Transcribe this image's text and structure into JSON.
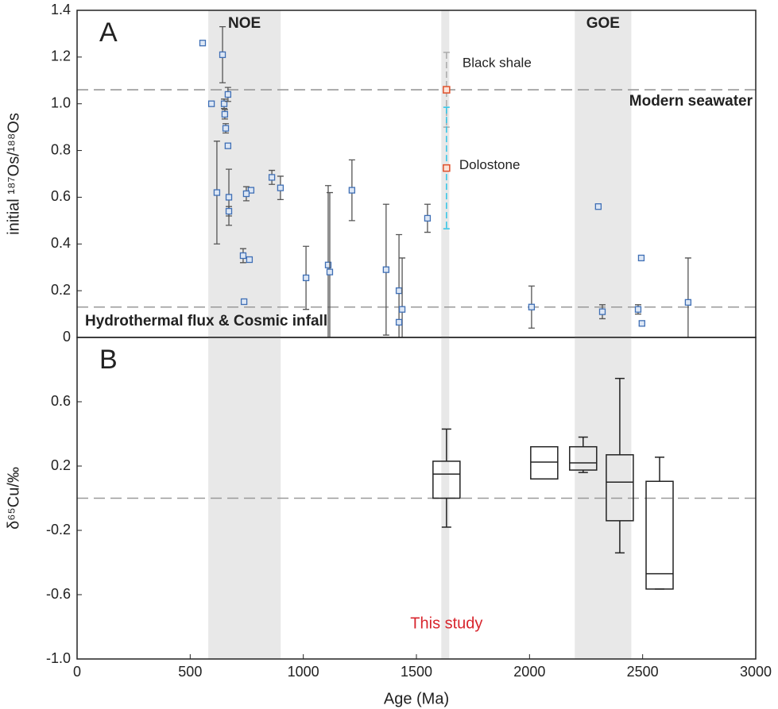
{
  "chart_data": [
    {
      "type": "scatter",
      "panel_label": "A",
      "ylabel": "initial ¹⁸⁷Os/¹⁸⁸Os",
      "xlim": [
        0,
        3000
      ],
      "ylim": [
        0,
        1.4
      ],
      "yticks": [
        0,
        0.2,
        0.4,
        0.6,
        0.8,
        {
          "value": 1,
          "label": "1.0"
        },
        1.2,
        1.4
      ],
      "bands": [
        {
          "from": 580,
          "to": 900,
          "label": "NOE"
        },
        {
          "from": 1610,
          "to": 1645
        },
        {
          "from": 2200,
          "to": 2450,
          "label": "GOE"
        }
      ],
      "hlines": [
        {
          "value": 1.06,
          "label": "Modern seawater"
        },
        {
          "value": 0.13,
          "label": "Hydrothermal flux & Cosmic infall"
        }
      ],
      "points": {
        "color": "#3f6fb5",
        "x": [
          555,
          643,
          594,
          650,
          653,
          657,
          667,
          667,
          618,
          671,
          671,
          769,
          748,
          861,
          899,
          734,
          762,
          738,
          1012,
          1110,
          1117,
          1215,
          1366,
          1423,
          1437,
          1423,
          1549,
          2009,
          2304,
          2322,
          2480,
          2494,
          2497,
          2701
        ],
        "y": [
          1.26,
          1.21,
          1.0,
          1.0,
          0.955,
          0.895,
          1.04,
          0.82,
          0.62,
          0.6,
          0.54,
          0.63,
          0.615,
          0.685,
          0.64,
          0.35,
          0.333,
          0.153,
          0.255,
          0.31,
          0.28,
          0.63,
          0.29,
          0.2,
          0.12,
          0.065,
          0.51,
          0.13,
          0.56,
          0.11,
          0.12,
          0.34,
          0.06,
          0.15
        ],
        "err": [
          0.01,
          0.12,
          0.01,
          0.02,
          0.02,
          0.02,
          0.03,
          0.01,
          0.22,
          0.12,
          0.02,
          0.01,
          0.03,
          0.03,
          0.05,
          0.03,
          0.01,
          0.01,
          0.135,
          0.34,
          0.34,
          0.13,
          0.28,
          0.24,
          0.22,
          0.01,
          0.06,
          0.09,
          0.01,
          0.03,
          0.02,
          0.01,
          0.01,
          0.19
        ]
      },
      "this_study": [
        {
          "name": "Black shale",
          "x": 1633,
          "y": 1.06,
          "err": 0.16,
          "color": "#e0502a",
          "err_color": "#aaaaaa"
        },
        {
          "name": "Dolostone",
          "x": 1633,
          "y": 0.725,
          "err": 0.26,
          "color": "#e0502a",
          "err_color": "#2ec4e6"
        }
      ]
    },
    {
      "type": "box",
      "panel_label": "B",
      "ylabel": "δ⁶⁵Cu/‰",
      "xlabel": "Age (Ma)",
      "xlim": [
        0,
        3000
      ],
      "xticks": [
        0,
        500,
        1000,
        1500,
        2000,
        2500,
        3000
      ],
      "ylim": [
        -1,
        1
      ],
      "yticks": [
        0.6,
        0.2,
        -0.2,
        -0.6,
        {
          "value": -1,
          "label": "-1.0"
        }
      ],
      "hlines": [
        {
          "value": 0
        }
      ],
      "annotation": "This study",
      "boxes": {
        "x": [
          1633,
          2065,
          2237,
          2399,
          2575
        ],
        "whishi": [
          0.43,
          null,
          0.38,
          0.745,
          0.255
        ],
        "q3": [
          0.23,
          0.32,
          0.32,
          0.27,
          0.105
        ],
        "med": [
          0.15,
          0.225,
          0.22,
          0.1,
          -0.47
        ],
        "q1": [
          0.0,
          0.12,
          0.175,
          -0.14,
          -0.565
        ],
        "whislo": [
          -0.18,
          null,
          0.16,
          -0.34,
          -0.565
        ]
      }
    }
  ]
}
